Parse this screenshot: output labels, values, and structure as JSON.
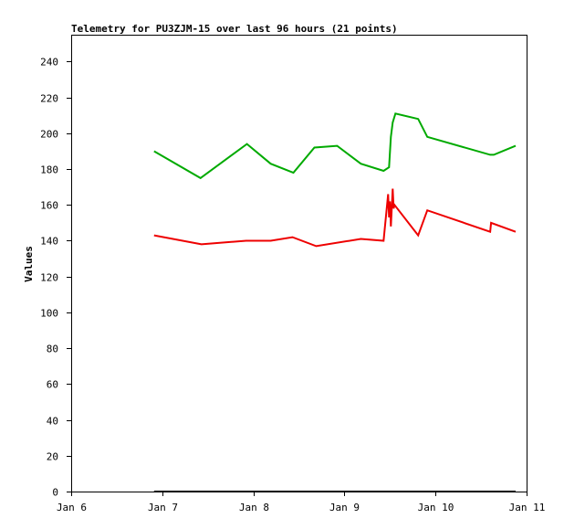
{
  "chart_data": {
    "type": "line",
    "title": "Telemetry for PU3ZJM-15 over last 96 hours (21 points)",
    "ylabel": "Values",
    "xlabel": "",
    "xlim": [
      6.0,
      11.0
    ],
    "ylim": [
      0,
      255
    ],
    "x_ticks": [
      {
        "value": 6,
        "label": "Jan 6"
      },
      {
        "value": 7,
        "label": "Jan 7"
      },
      {
        "value": 8,
        "label": "Jan 8"
      },
      {
        "value": 9,
        "label": "Jan 9"
      },
      {
        "value": 10,
        "label": "Jan 10"
      },
      {
        "value": 11,
        "label": "Jan 11"
      }
    ],
    "y_ticks": [
      0,
      20,
      40,
      60,
      80,
      100,
      120,
      140,
      160,
      180,
      200,
      220,
      240
    ],
    "grid": false,
    "series": [
      {
        "color": "#00aa00",
        "x": [
          6.91,
          7.42,
          7.93,
          8.19,
          8.44,
          8.67,
          8.92,
          9.18,
          9.43,
          9.49,
          9.51,
          9.53,
          9.56,
          9.81,
          9.91,
          10.6,
          10.64,
          10.88
        ],
        "y": [
          190,
          175,
          194,
          183,
          178,
          192,
          193,
          183,
          179,
          181,
          198,
          206,
          211,
          208,
          198,
          188,
          188,
          193
        ]
      },
      {
        "color": "#ee0000",
        "x": [
          6.91,
          7.43,
          7.92,
          8.19,
          8.43,
          8.69,
          9.18,
          9.43,
          9.48,
          9.49,
          9.5,
          9.51,
          9.53,
          9.54,
          9.55,
          9.81,
          9.91,
          10.6,
          10.61,
          10.88
        ],
        "y": [
          143,
          138,
          140,
          140,
          142,
          137,
          141,
          140,
          166,
          153,
          162,
          148,
          169,
          158,
          160,
          143,
          157,
          145,
          150,
          145
        ]
      },
      {
        "color": "#000000",
        "x": [
          6.91,
          7.42,
          7.93,
          8.19,
          8.44,
          8.67,
          8.92,
          9.18,
          9.43,
          9.49,
          9.56,
          9.81,
          9.91,
          10.6,
          10.88
        ],
        "y": [
          0,
          0,
          0,
          0,
          0,
          0,
          0,
          0,
          0,
          0,
          0,
          0,
          0,
          0,
          0
        ]
      }
    ]
  }
}
